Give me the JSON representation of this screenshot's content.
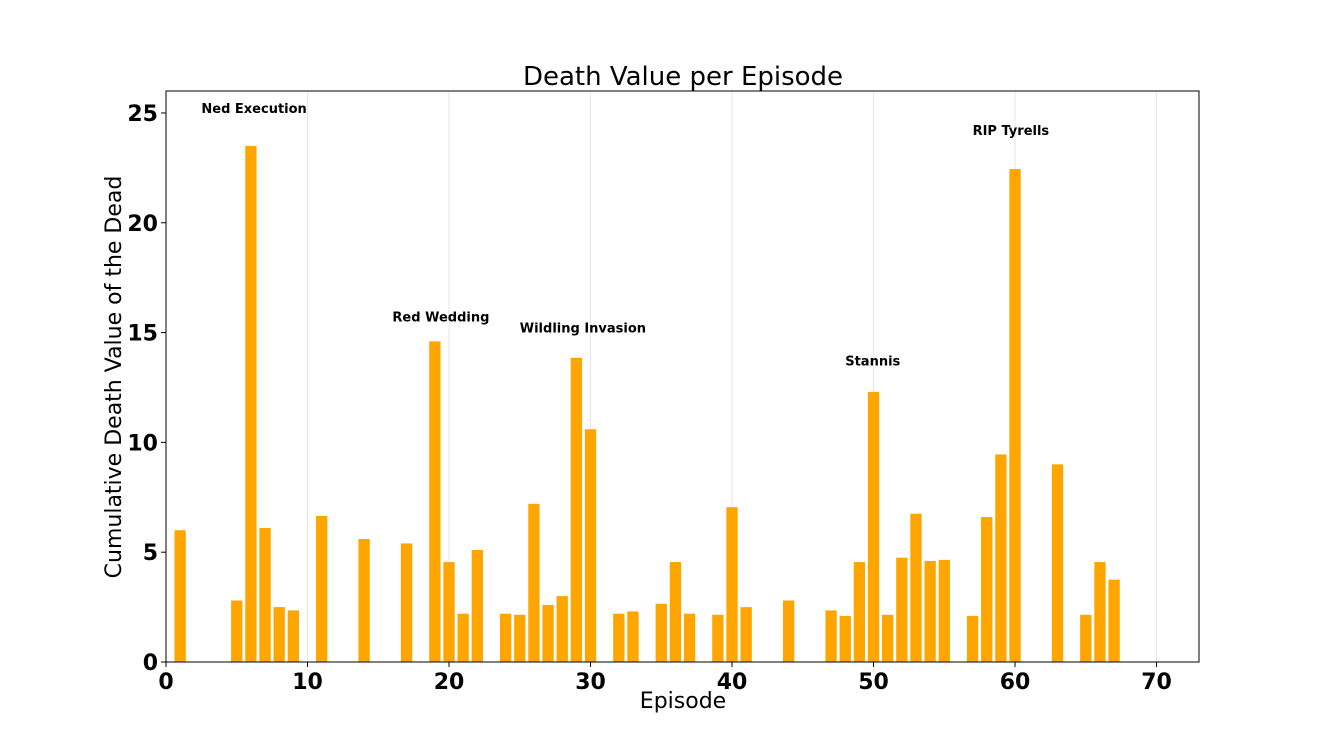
{
  "chart_data": {
    "type": "bar",
    "title": "Death Value per Episode",
    "xlabel": "Episode",
    "ylabel": "Cumulative Death Value of the Dead",
    "xlim": [
      0,
      73
    ],
    "ylim": [
      0,
      26
    ],
    "xticks": [
      0,
      10,
      20,
      30,
      40,
      50,
      60,
      70
    ],
    "yticks": [
      0,
      5,
      10,
      15,
      20,
      25
    ],
    "grid": "vertical",
    "bar_color": "#FFA500",
    "x": [
      1,
      5,
      6,
      7,
      8,
      9,
      11,
      14,
      17,
      19,
      20,
      21,
      22,
      24,
      25,
      26,
      27,
      28,
      29,
      30,
      32,
      33,
      35,
      36,
      37,
      39,
      40,
      41,
      44,
      47,
      48,
      49,
      50,
      51,
      52,
      53,
      54,
      55,
      57,
      58,
      59,
      60,
      63,
      65,
      66,
      67
    ],
    "values": [
      6.0,
      2.8,
      23.5,
      6.1,
      2.5,
      2.35,
      6.65,
      5.6,
      5.4,
      14.6,
      4.55,
      2.2,
      5.1,
      2.2,
      2.15,
      7.2,
      2.6,
      3.0,
      13.85,
      10.6,
      2.2,
      2.3,
      2.65,
      4.55,
      2.2,
      2.15,
      7.05,
      2.5,
      2.8,
      2.35,
      2.1,
      4.55,
      12.3,
      2.15,
      4.75,
      6.75,
      4.6,
      4.65,
      2.1,
      6.6,
      9.45,
      22.45,
      9.0,
      2.15,
      4.55,
      3.75
    ],
    "annotations": [
      {
        "text": "Ned Execution",
        "x": 2.5,
        "y": 25.0
      },
      {
        "text": "Red Wedding",
        "x": 16.0,
        "y": 15.5
      },
      {
        "text": "Wildling Invasion",
        "x": 25.0,
        "y": 15.0
      },
      {
        "text": "Stannis",
        "x": 48.0,
        "y": 13.5
      },
      {
        "text": "RIP Tyrells",
        "x": 57.0,
        "y": 24.0
      }
    ]
  }
}
